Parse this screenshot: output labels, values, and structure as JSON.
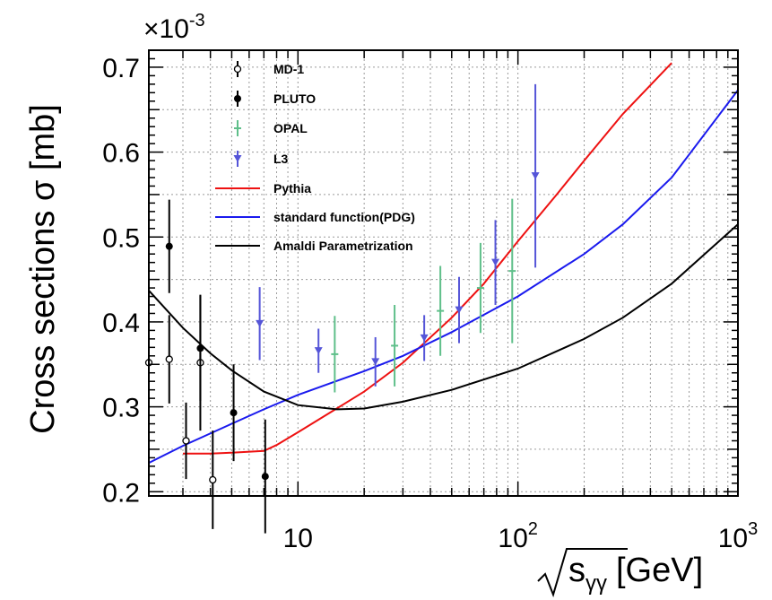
{
  "chart_data": {
    "type": "scatter",
    "x_scale": "log",
    "xlim": [
      2.1,
      1000
    ],
    "ylim": [
      0.195,
      0.72
    ],
    "y_multiplier_label": "×10",
    "y_multiplier_exponent": "-3",
    "xlabel_main": "s",
    "xlabel_sub": "γγ",
    "xlabel_unit": "[GeV]",
    "ylabel": "Cross sections σ [mb]",
    "grid": true,
    "legend_position": "top-left",
    "x_ticks": [
      {
        "value": 10,
        "label": "10",
        "exp": ""
      },
      {
        "value": 100,
        "label": "10",
        "exp": "2"
      },
      {
        "value": 1000,
        "label": "10",
        "exp": "3"
      }
    ],
    "y_ticks": [
      {
        "value": 0.2,
        "label": "0.2"
      },
      {
        "value": 0.3,
        "label": "0.3"
      },
      {
        "value": 0.4,
        "label": "0.4"
      },
      {
        "value": 0.5,
        "label": "0.5"
      },
      {
        "value": 0.6,
        "label": "0.6"
      },
      {
        "value": 0.7,
        "label": "0.7"
      }
    ],
    "series": [
      {
        "name": "MD-1",
        "kind": "points",
        "marker": "open-circle",
        "color": "#000000",
        "points": [
          [
            2.1,
            0.352,
            0.058
          ],
          [
            2.6,
            0.356,
            0.052
          ],
          [
            3.1,
            0.26,
            0.045
          ],
          [
            3.6,
            0.352,
            0.08
          ],
          [
            4.1,
            0.214,
            0.058
          ]
        ]
      },
      {
        "name": "PLUTO",
        "kind": "points",
        "marker": "filled-circle",
        "color": "#000000",
        "points": [
          [
            2.6,
            0.489,
            0.055
          ],
          [
            3.6,
            0.369,
            0.062
          ],
          [
            5.1,
            0.293,
            0.057
          ],
          [
            7.1,
            0.218,
            0.067
          ]
        ]
      },
      {
        "name": "OPAL",
        "kind": "points",
        "marker": "plus",
        "color": "#5fbf8a",
        "points": [
          [
            14.7,
            0.362,
            0.045
          ],
          [
            27.5,
            0.372,
            0.048
          ],
          [
            44.4,
            0.413,
            0.053
          ],
          [
            67.6,
            0.44,
            0.053
          ],
          [
            94.2,
            0.46,
            0.085
          ]
        ]
      },
      {
        "name": "L3",
        "kind": "points",
        "marker": "triangle-down",
        "color": "#5555d8",
        "points": [
          [
            6.7,
            0.398,
            0.043
          ],
          [
            12.4,
            0.366,
            0.026
          ],
          [
            22.5,
            0.353,
            0.029
          ],
          [
            37.5,
            0.381,
            0.027
          ],
          [
            54.0,
            0.414,
            0.039
          ],
          [
            79.0,
            0.47,
            0.05
          ],
          [
            120.0,
            0.572,
            0.108
          ]
        ]
      },
      {
        "name": "Pythia",
        "kind": "line",
        "color": "#ee1111",
        "points": [
          [
            3,
            0.245
          ],
          [
            4,
            0.245
          ],
          [
            5,
            0.246
          ],
          [
            7,
            0.248
          ],
          [
            8,
            0.255
          ],
          [
            10,
            0.27
          ],
          [
            15,
            0.298
          ],
          [
            20,
            0.318
          ],
          [
            30,
            0.352
          ],
          [
            50,
            0.405
          ],
          [
            70,
            0.445
          ],
          [
            100,
            0.495
          ],
          [
            150,
            0.55
          ],
          [
            200,
            0.59
          ],
          [
            300,
            0.645
          ],
          [
            500,
            0.705
          ]
        ]
      },
      {
        "name": "standard function(PDG)",
        "kind": "line",
        "color": "#1a1aee",
        "points": [
          [
            2.1,
            0.234
          ],
          [
            3,
            0.254
          ],
          [
            5,
            0.28
          ],
          [
            7,
            0.297
          ],
          [
            10,
            0.314
          ],
          [
            20,
            0.342
          ],
          [
            30,
            0.36
          ],
          [
            50,
            0.388
          ],
          [
            100,
            0.43
          ],
          [
            200,
            0.48
          ],
          [
            300,
            0.515
          ],
          [
            500,
            0.57
          ],
          [
            1000,
            0.673
          ]
        ]
      },
      {
        "name": "Amaldi Parametrization",
        "kind": "line",
        "color": "#000000",
        "points": [
          [
            2.1,
            0.437
          ],
          [
            3,
            0.393
          ],
          [
            4,
            0.363
          ],
          [
            5,
            0.343
          ],
          [
            7,
            0.318
          ],
          [
            10,
            0.302
          ],
          [
            15,
            0.297
          ],
          [
            20,
            0.298
          ],
          [
            30,
            0.306
          ],
          [
            50,
            0.32
          ],
          [
            100,
            0.345
          ],
          [
            200,
            0.38
          ],
          [
            300,
            0.405
          ],
          [
            500,
            0.445
          ],
          [
            1000,
            0.515
          ]
        ]
      }
    ]
  }
}
